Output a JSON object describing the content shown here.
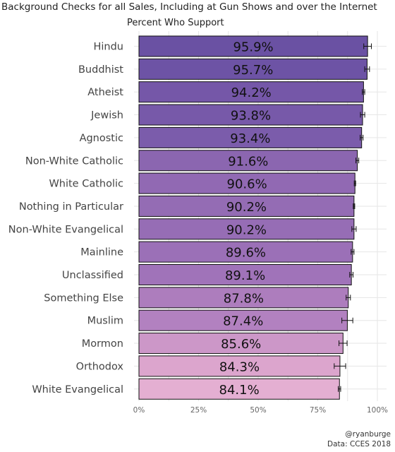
{
  "chart_data": {
    "type": "bar",
    "orientation": "horizontal",
    "title": "Background Checks for all Sales, Including at Gun Shows and over the Internet",
    "subtitle": "Percent Who Support",
    "categories": [
      "Hindu",
      "Buddhist",
      "Atheist",
      "Jewish",
      "Agnostic",
      "Non-White Catholic",
      "White Catholic",
      "Nothing in Particular",
      "Non-White Evangelical",
      "Mainline",
      "Unclassified",
      "Something Else",
      "Muslim",
      "Mormon",
      "Orthodox",
      "White Evangelical"
    ],
    "values": [
      95.9,
      95.7,
      94.2,
      93.8,
      93.4,
      91.6,
      90.6,
      90.2,
      90.2,
      89.6,
      89.1,
      87.8,
      87.4,
      85.6,
      84.3,
      84.1
    ],
    "value_labels": [
      "95.9%",
      "95.7%",
      "94.2%",
      "93.8%",
      "93.4%",
      "91.6%",
      "90.6%",
      "90.2%",
      "90.2%",
      "89.6%",
      "89.1%",
      "87.8%",
      "87.4%",
      "85.6%",
      "84.3%",
      "84.1%"
    ],
    "error_low": [
      94.3,
      94.7,
      93.7,
      92.9,
      92.8,
      91.0,
      90.3,
      89.9,
      89.3,
      89.0,
      88.4,
      86.9,
      85.1,
      83.9,
      81.9,
      83.6
    ],
    "error_high": [
      97.5,
      96.7,
      94.7,
      94.7,
      94.0,
      92.2,
      90.9,
      90.5,
      91.1,
      90.2,
      89.8,
      88.7,
      89.7,
      87.3,
      86.7,
      84.6
    ],
    "bar_colors": [
      "#6a51a3",
      "#6d53a5",
      "#7557a8",
      "#7759a9",
      "#7b5cab",
      "#8b66b0",
      "#9169b3",
      "#946cb4",
      "#966db5",
      "#9b70b7",
      "#a073b9",
      "#ad7dbd",
      "#b281c0",
      "#cc97c8",
      "#dca5cd",
      "#e4afd2"
    ],
    "x_ticks": [
      "0%",
      "25%",
      "50%",
      "75%",
      "100%"
    ],
    "x_tick_values": [
      0,
      25,
      50,
      75,
      100
    ],
    "xlim": [
      0,
      100
    ],
    "grid": true,
    "legend": "none",
    "caption_lines": [
      "@ryanburge",
      "Data: CCES 2018"
    ]
  }
}
